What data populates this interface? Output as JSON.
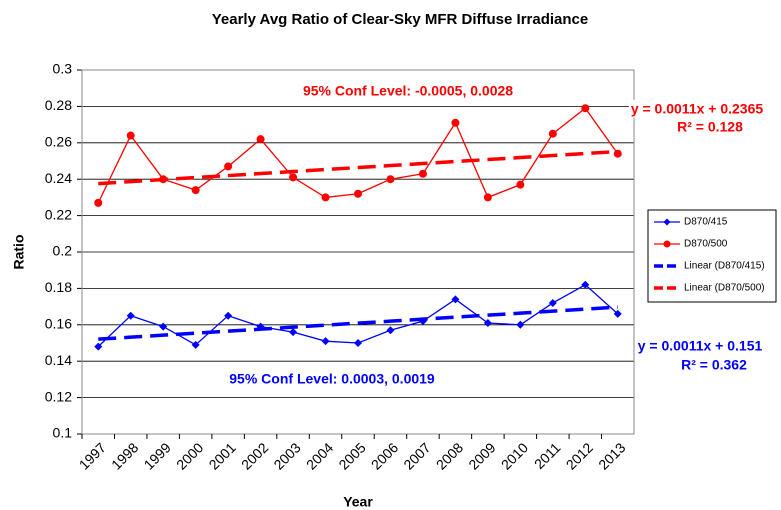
{
  "chart_data": {
    "type": "line",
    "title": "Yearly Avg Ratio of Clear-Sky MFR Diffuse Irradiance",
    "xlabel": "Year",
    "ylabel": "Ratio",
    "categories": [
      "1997",
      "1998",
      "1999",
      "2000",
      "2001",
      "2002",
      "2003",
      "2004",
      "2005",
      "2006",
      "2007",
      "2008",
      "2009",
      "2010",
      "2011",
      "2012",
      "2013"
    ],
    "ylim": [
      0.1,
      0.3
    ],
    "yticks": [
      0.1,
      0.12,
      0.14,
      0.16,
      0.18,
      0.2,
      0.22,
      0.24,
      0.26,
      0.28,
      0.3
    ],
    "grid": true,
    "legend": "right",
    "series": [
      {
        "name": "D870/415",
        "color": "#0000ff",
        "marker": "diamond",
        "dashed": false,
        "values": [
          0.148,
          0.165,
          0.159,
          0.149,
          0.165,
          0.159,
          0.156,
          0.151,
          0.15,
          0.157,
          0.162,
          0.174,
          0.161,
          0.16,
          0.172,
          0.182,
          0.166
        ]
      },
      {
        "name": "D870/500",
        "color": "#ff0000",
        "marker": "circle",
        "dashed": false,
        "values": [
          0.227,
          0.264,
          0.24,
          0.234,
          0.247,
          0.262,
          0.241,
          0.23,
          0.232,
          0.24,
          0.243,
          0.271,
          0.23,
          0.237,
          0.265,
          0.279,
          0.254
        ]
      },
      {
        "name": "Linear (D870/415)",
        "color": "#0000ff",
        "marker": "none",
        "dashed": true,
        "values": [
          0.1521,
          0.1532,
          0.1543,
          0.1554,
          0.1565,
          0.1576,
          0.1587,
          0.1598,
          0.1609,
          0.162,
          0.1631,
          0.1642,
          0.1653,
          0.1664,
          0.1675,
          0.1686,
          0.1697
        ]
      },
      {
        "name": "Linear (D870/500)",
        "color": "#ff0000",
        "marker": "none",
        "dashed": true,
        "values": [
          0.2376,
          0.2387,
          0.2398,
          0.2409,
          0.242,
          0.2431,
          0.2442,
          0.2453,
          0.2464,
          0.2475,
          0.2486,
          0.2497,
          0.2508,
          0.2519,
          0.253,
          0.2541,
          0.2552
        ]
      }
    ],
    "annotations": [
      {
        "text": "95% Conf Level: -0.0005, 0.0028",
        "color": "#ff0000"
      },
      {
        "text": "y = 0.0011x + 0.2365",
        "color": "#ff0000"
      },
      {
        "text": "R² = 0.128",
        "color": "#ff0000"
      },
      {
        "text": "y = 0.0011x + 0.151",
        "color": "#0000ff"
      },
      {
        "text": "R² = 0.362",
        "color": "#0000ff"
      },
      {
        "text": "95% Conf Level: 0.0003, 0.0019",
        "color": "#0000ff"
      }
    ]
  }
}
